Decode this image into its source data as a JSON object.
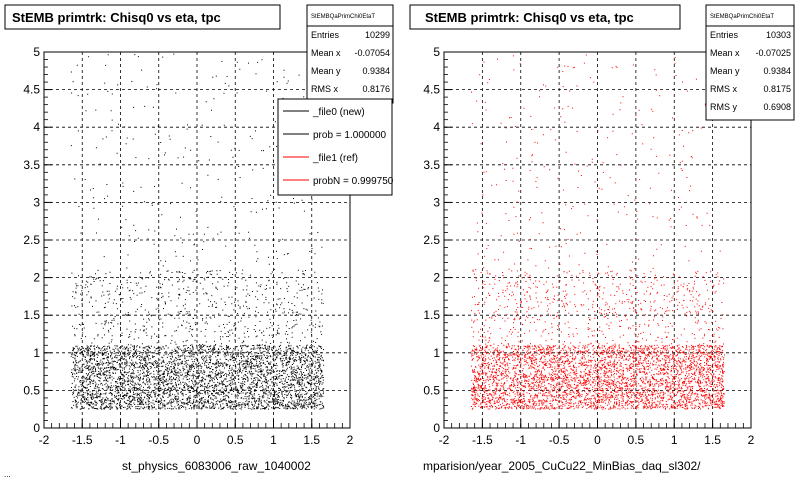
{
  "chart_data": [
    {
      "type": "scatter",
      "title": "StEMB primtrk: Chisq0 vs eta, tpc",
      "xlim": [
        -2,
        2
      ],
      "ylim": [
        0,
        5
      ],
      "x_ticks": [
        "-2",
        "-1.5",
        "-1",
        "-0.5",
        "0",
        "0.5",
        "1",
        "1.5",
        "2"
      ],
      "y_ticks": [
        "0",
        "0.5",
        "1",
        "1.5",
        "2",
        "2.5",
        "3",
        "3.5",
        "4",
        "4.5",
        "5"
      ],
      "grid": true,
      "marker_color": "#000000",
      "stats": {
        "header": "StEMBQaPrimChi0EtaT",
        "rows": [
          {
            "label": "Entries",
            "value": "10299"
          },
          {
            "label": "Mean x",
            "value": "-0.07054"
          },
          {
            "label": "Mean y",
            "value": "0.9384"
          },
          {
            "label": "RMS x",
            "value": "0.8176"
          }
        ]
      },
      "legend": [
        {
          "label": "_file0 (new)",
          "color": "#000000"
        },
        {
          "label": "prob = 1.000000",
          "color": "#000000"
        },
        {
          "label": "_file1 (ref)",
          "color": "#ff0000"
        },
        {
          "label": "probN = 0.999750",
          "color": "#ff0000"
        }
      ],
      "xlabel": "st_physics_6083006_raw_1040002"
    },
    {
      "type": "scatter",
      "title": "StEMB primtrk: Chisq0 vs eta, tpc",
      "xlim": [
        -2,
        2
      ],
      "ylim": [
        0,
        5
      ],
      "x_ticks": [
        "-2",
        "-1.5",
        "-1",
        "-0.5",
        "0",
        "0.5",
        "1",
        "1.5",
        "2"
      ],
      "y_ticks": [
        "0",
        "0.5",
        "1",
        "1.5",
        "2",
        "2.5",
        "3",
        "3.5",
        "4",
        "4.5",
        "5"
      ],
      "grid": true,
      "marker_color": "#ff0000",
      "stats": {
        "header": "StEMBQaPrimChi0EtaT",
        "rows": [
          {
            "label": "Entries",
            "value": "10303"
          },
          {
            "label": "Mean x",
            "value": "-0.07025"
          },
          {
            "label": "Mean y",
            "value": "0.9384"
          },
          {
            "label": "RMS x",
            "value": "0.8175"
          },
          {
            "label": "RMS y",
            "value": "0.6908"
          }
        ]
      },
      "xlabel": "mparision/year_2005_CuCu22_MinBias_daq_sl302/"
    }
  ],
  "footer_left": "..."
}
